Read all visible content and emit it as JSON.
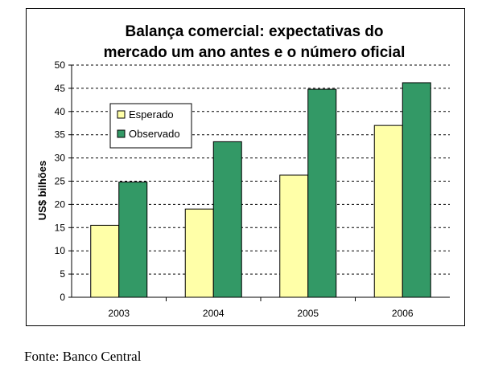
{
  "chart_data": {
    "type": "bar",
    "title": [
      "Balança comercial: expectativas do",
      "mercado um ano antes e o número oficial"
    ],
    "ylabel": "US$ bilhões",
    "xlabel": "",
    "categories": [
      "2003",
      "2004",
      "2005",
      "2006"
    ],
    "series": [
      {
        "name": "Esperado",
        "values": [
          15.5,
          19,
          26.3,
          37
        ],
        "color": "#ffffa8"
      },
      {
        "name": "Observado",
        "values": [
          24.8,
          33.5,
          44.8,
          46.2
        ],
        "color": "#339966"
      }
    ],
    "ylim": [
      0,
      50
    ],
    "yticks": [
      0,
      5,
      10,
      15,
      20,
      25,
      30,
      35,
      40,
      45,
      50
    ],
    "grid": true,
    "legend": "top-left"
  },
  "source": "Fonte: Banco Central"
}
